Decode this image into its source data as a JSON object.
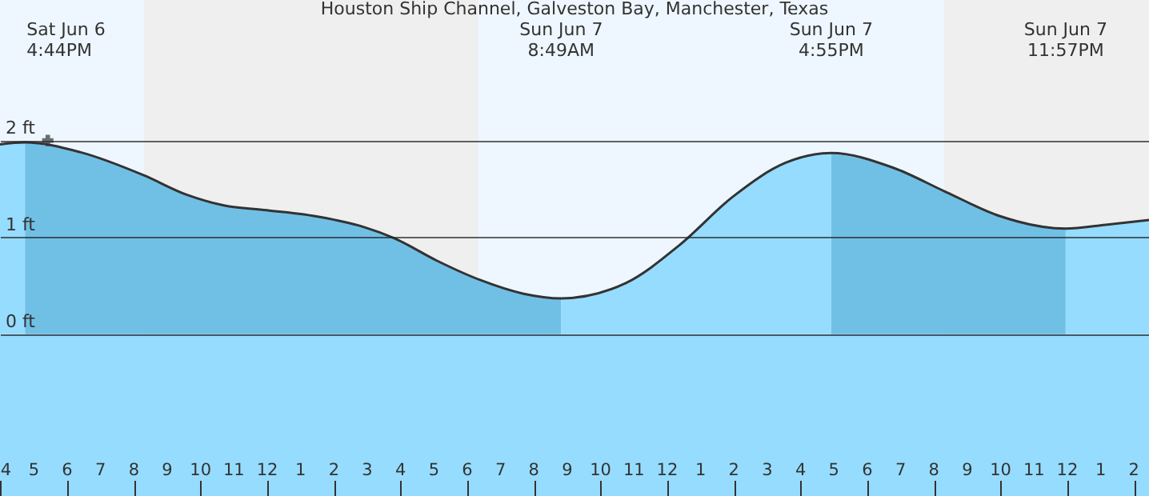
{
  "chart_data": {
    "type": "area",
    "title": "Houston Ship Channel, Galveston Bay, Manchester, Texas",
    "x": [
      "--06-06T15:59",
      "--06-06T16:44",
      "--06-06T18:23",
      "--06-06T20:18",
      "--06-06T21:35",
      "--06-06T22:42",
      "--06-06T23:59",
      "--06-07T01:35",
      "--06-07T02:52",
      "--06-07T03:49",
      "--06-07T05:05",
      "--06-07T06:23",
      "--06-07T07:40",
      "--06-07T08:49",
      "--06-07T10:46",
      "--06-07T12:22",
      "--06-07T13:58",
      "--06-07T15:33",
      "--06-07T16:55",
      "--06-07T18:46",
      "--06-07T20:21",
      "--06-07T21:58",
      "--06-07T23:57",
      "--06-08T01:09",
      "--06-08T02:27"
    ],
    "series": [
      {
        "color": "#96dcff",
        "x": [
          "--06-06T15:59",
          "--06-06T16:44"
        ],
        "values": [
          1.96,
          1.98
        ]
      },
      {
        "color": "#70c0e6",
        "x": [
          "--06-06T16:44",
          "--06-06T18:23",
          "--06-06T20:18",
          "--06-06T21:35",
          "--06-06T22:42",
          "--06-06T23:59",
          "--06-07T01:35",
          "--06-07T02:52",
          "--06-07T03:49",
          "--06-07T05:05",
          "--06-07T06:23",
          "--06-07T07:40",
          "--06-07T08:49"
        ],
        "values": [
          1.98,
          1.88,
          1.64,
          1.44,
          1.33,
          1.28,
          1.21,
          1.11,
          0.99,
          0.76,
          0.56,
          0.42,
          0.37
        ]
      },
      {
        "color": "#96dcff",
        "x": [
          "--06-07T08:49",
          "--06-07T10:46",
          "--06-07T12:22",
          "--06-07T13:58",
          "--06-07T15:33",
          "--06-07T16:55"
        ],
        "values": [
          0.37,
          0.53,
          0.92,
          1.42,
          1.77,
          1.87
        ]
      },
      {
        "color": "#70c0e6",
        "x": [
          "--06-07T16:55",
          "--06-07T18:46",
          "--06-07T20:21",
          "--06-07T21:58",
          "--06-07T23:57"
        ],
        "values": [
          1.87,
          1.72,
          1.47,
          1.22,
          1.09
        ]
      },
      {
        "color": "#96dcff",
        "x": [
          "--06-07T23:57",
          "--06-08T01:09",
          "--06-08T02:27"
        ],
        "values": [
          1.09,
          1.13,
          1.18
        ]
      },
      {
        "type": "line",
        "color": "#333333",
        "values": [
          1.96,
          1.98,
          1.88,
          1.64,
          1.44,
          1.33,
          1.28,
          1.21,
          1.11,
          0.99,
          0.76,
          0.56,
          0.42,
          0.37,
          0.53,
          0.92,
          1.42,
          1.77,
          1.87,
          1.72,
          1.47,
          1.22,
          1.09,
          1.13,
          1.18
        ]
      },
      {
        "type": "scatter",
        "marker": "cross",
        "color": "#333333",
        "x": [
          "--06-06T17:25"
        ],
        "values": [
          2.0
        ]
      }
    ],
    "xlim": [
      "--06-06T15:59",
      "--06-08T02:27"
    ],
    "xticks": [
      {
        "value": "--06-06T16:00",
        "label": "4"
      },
      {
        "value": "--06-06T17:00",
        "label": "5"
      },
      {
        "value": "--06-06T18:00",
        "label": "6"
      },
      {
        "value": "--06-06T19:00",
        "label": "7"
      },
      {
        "value": "--06-06T20:00",
        "label": "8"
      },
      {
        "value": "--06-06T21:00",
        "label": "9"
      },
      {
        "value": "--06-06T22:00",
        "label": "10"
      },
      {
        "value": "--06-06T23:00",
        "label": "11"
      },
      {
        "value": "--06-07T00:00",
        "label": "12"
      },
      {
        "value": "--06-07T01:00",
        "label": "1"
      },
      {
        "value": "--06-07T02:00",
        "label": "2"
      },
      {
        "value": "--06-07T03:00",
        "label": "3"
      },
      {
        "value": "--06-07T04:00",
        "label": "4"
      },
      {
        "value": "--06-07T05:00",
        "label": "5"
      },
      {
        "value": "--06-07T06:00",
        "label": "6"
      },
      {
        "value": "--06-07T07:00",
        "label": "7"
      },
      {
        "value": "--06-07T08:00",
        "label": "8"
      },
      {
        "value": "--06-07T09:00",
        "label": "9"
      },
      {
        "value": "--06-07T10:00",
        "label": "10"
      },
      {
        "value": "--06-07T11:00",
        "label": "11"
      },
      {
        "value": "--06-07T12:00",
        "label": "12"
      },
      {
        "value": "--06-07T13:00",
        "label": "1"
      },
      {
        "value": "--06-07T14:00",
        "label": "2"
      },
      {
        "value": "--06-07T15:00",
        "label": "3"
      },
      {
        "value": "--06-07T16:00",
        "label": "4"
      },
      {
        "value": "--06-07T17:00",
        "label": "5"
      },
      {
        "value": "--06-07T18:00",
        "label": "6"
      },
      {
        "value": "--06-07T19:00",
        "label": "7"
      },
      {
        "value": "--06-07T20:00",
        "label": "8"
      },
      {
        "value": "--06-07T21:00",
        "label": "9"
      },
      {
        "value": "--06-07T22:00",
        "label": "10"
      },
      {
        "value": "--06-07T23:00",
        "label": "11"
      },
      {
        "value": "--06-08T00:00",
        "label": "12"
      },
      {
        "value": "--06-08T01:00",
        "label": "1"
      },
      {
        "value": "--06-08T02:00",
        "label": "2"
      }
    ],
    "ylim": [
      -1.67,
      3.45
    ],
    "yticks": [
      {
        "value": 0,
        "label": "0 ft"
      },
      {
        "value": 1,
        "label": "1 ft"
      },
      {
        "value": 2,
        "label": "2 ft"
      }
    ],
    "grid": "y",
    "bands": [
      {
        "axis": "x",
        "from": "--06-06T20:18",
        "to": "--06-07T06:20",
        "color": "#efefef"
      },
      {
        "axis": "x",
        "from": "--06-07T20:18",
        "to": "--06-08T02:27",
        "color": "#efefef"
      },
      {
        "axis": "y",
        "from": -1.67,
        "to": 0,
        "color": "#96dcff"
      }
    ],
    "annotations": [
      "Sat Jun  6\n4:44PM",
      "Sun Jun  7\n8:49AM",
      "Sun Jun  7\n4:55PM",
      "Sun Jun  7\n11:57PM"
    ]
  }
}
